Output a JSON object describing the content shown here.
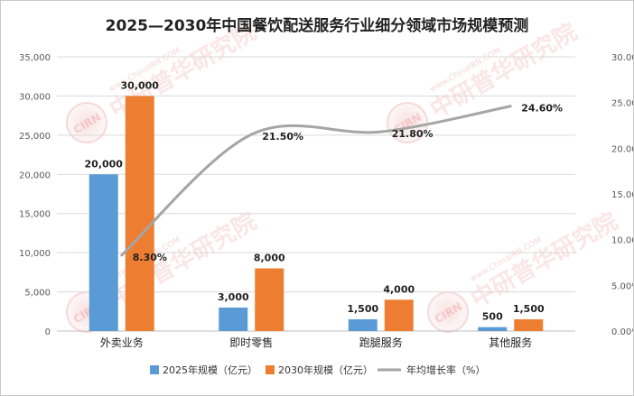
{
  "chart_data": {
    "type": "bar",
    "title": "2025—2030年中国餐饮配送服务行业细分领域市场规模预测",
    "categories": [
      "外卖业务",
      "即时零售",
      "跑腿服务",
      "其他服务"
    ],
    "series": [
      {
        "name": "2025年规模（亿元）",
        "values": [
          20000,
          3000,
          1500,
          500
        ],
        "value_labels": [
          "20,000",
          "3,000",
          "1,500",
          "500"
        ],
        "color": "#5b9bd5",
        "kind": "bar",
        "axis": "left"
      },
      {
        "name": "2030年规模（亿元）",
        "values": [
          30000,
          8000,
          4000,
          1500
        ],
        "value_labels": [
          "30,000",
          "8,000",
          "4,000",
          "1,500"
        ],
        "color": "#ed7d31",
        "kind": "bar",
        "axis": "left"
      },
      {
        "name": "年均增长率（%）",
        "values": [
          8.3,
          21.5,
          21.8,
          24.6
        ],
        "value_labels": [
          "8.30%",
          "21.50%",
          "21.80%",
          "24.60%"
        ],
        "color": "#a5a5a5",
        "kind": "line",
        "axis": "right"
      }
    ],
    "ylim": [
      0,
      35000
    ],
    "y_ticks": [
      "0",
      "5,000",
      "10,000",
      "15,000",
      "20,000",
      "25,000",
      "30,000",
      "35,000"
    ],
    "y2lim": [
      0,
      30
    ],
    "y2_ticks": [
      "0.00%",
      "5.00%",
      "10.00%",
      "15.00%",
      "20.00%",
      "25.00%",
      "30.00%"
    ],
    "grid": true,
    "legend_position": "bottom"
  },
  "watermark": {
    "brand": "中研普华研究院",
    "site": "www.ChinaIRN.COM",
    "logo": "CIRN"
  }
}
